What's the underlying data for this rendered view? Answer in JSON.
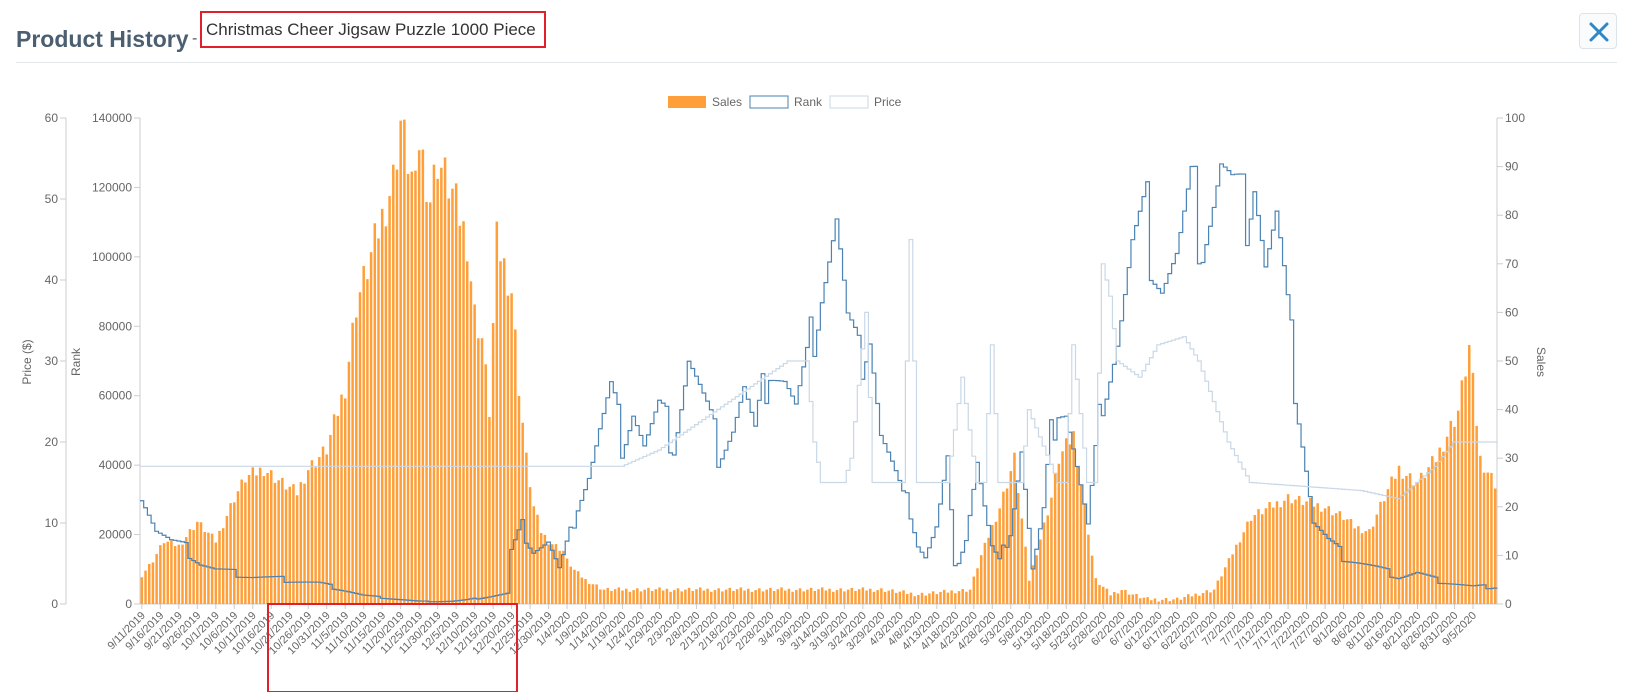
{
  "header": {
    "title": "Product History",
    "separator": "-",
    "product_name": "Christmas Cheer Jigsaw Puzzle 1000 Piece"
  },
  "icons": {
    "close": "close-icon"
  },
  "colors": {
    "sales": "#ff9f3a",
    "rank": "#4a83b4",
    "price": "#c9d8e6",
    "highlight": "#e0202b",
    "title": "#4b5f71"
  },
  "chart_data": {
    "type": "bar",
    "legend": {
      "position": "top-center",
      "entries": [
        "Sales",
        "Rank",
        "Price"
      ]
    },
    "axes": {
      "price": {
        "label": "Price ($)",
        "min": 0,
        "max": 60,
        "ticks": [
          "0",
          "10",
          "20",
          "30",
          "40",
          "50",
          "60"
        ]
      },
      "rank": {
        "label": "Rank",
        "min": 0,
        "max": 140000,
        "ticks": [
          "0",
          "20000",
          "40000",
          "60000",
          "80000",
          "100000",
          "120000",
          "140000"
        ]
      },
      "sales": {
        "label": "Sales",
        "min": 0,
        "max": 100,
        "ticks": [
          "0",
          "10",
          "20",
          "30",
          "40",
          "50",
          "60",
          "70",
          "80",
          "90",
          "100"
        ]
      }
    },
    "x_start": "9/11/2019",
    "x_days": 367,
    "x_tick_labels": [
      "9/11/2019",
      "9/16/2019",
      "9/21/2019",
      "9/26/2019",
      "10/1/2019",
      "10/6/2019",
      "10/11/2019",
      "10/16/2019",
      "10/21/2019",
      "10/26/2019",
      "10/31/2019",
      "11/5/2019",
      "11/10/2019",
      "11/15/2019",
      "11/20/2019",
      "11/25/2019",
      "11/30/2019",
      "12/5/2019",
      "12/10/2019",
      "12/15/2019",
      "12/20/2019",
      "12/25/2019",
      "12/30/2019",
      "1/4/2020",
      "1/9/2020",
      "1/14/2020",
      "1/19/2020",
      "1/24/2020",
      "1/29/2020",
      "2/3/2020",
      "2/8/2020",
      "2/13/2020",
      "2/18/2020",
      "2/23/2020",
      "2/28/2020",
      "3/4/2020",
      "3/9/2020",
      "3/14/2020",
      "3/19/2020",
      "3/24/2020",
      "3/29/2020",
      "4/3/2020",
      "4/8/2020",
      "4/13/2020",
      "4/18/2020",
      "4/23/2020",
      "4/28/2020",
      "5/3/2020",
      "5/8/2020",
      "5/13/2020",
      "5/18/2020",
      "5/23/2020",
      "5/28/2020",
      "6/2/2020",
      "6/7/2020",
      "6/12/2020",
      "6/17/2020",
      "6/22/2020",
      "6/27/2020",
      "7/2/2020",
      "7/7/2020",
      "7/12/2020",
      "7/17/2020",
      "7/22/2020",
      "7/27/2020",
      "8/1/2020",
      "8/6/2020",
      "8/11/2020",
      "8/16/2020",
      "8/21/2020",
      "8/26/2020",
      "8/31/2020",
      "9/5/2020"
    ],
    "sales_keyframes": {
      "day": [
        0,
        3,
        6,
        10,
        15,
        20,
        25,
        28,
        33,
        38,
        42,
        45,
        50,
        55,
        58,
        62,
        65,
        68,
        70,
        72,
        74,
        75,
        78,
        80,
        84,
        88,
        90,
        92,
        94,
        96,
        98,
        100,
        102,
        104,
        106,
        108,
        110,
        112,
        114,
        115,
        117,
        120,
        125,
        130,
        140,
        150,
        160,
        175,
        190,
        200,
        210,
        224,
        227,
        232,
        236,
        240,
        246,
        248,
        252,
        256,
        258,
        262,
        265,
        268,
        272,
        276,
        280,
        290,
        300,
        310,
        320,
        325,
        328,
        332,
        336,
        340,
        345,
        350,
        356,
        359,
        362,
        366
      ],
      "value": [
        6,
        9,
        13,
        12,
        17,
        13,
        22,
        26,
        28,
        25,
        23,
        28,
        32,
        45,
        62,
        72,
        80,
        88,
        100,
        92,
        85,
        96,
        84,
        92,
        85,
        75,
        60,
        55,
        40,
        75,
        70,
        65,
        45,
        30,
        20,
        15,
        13,
        12,
        11,
        9,
        7,
        5,
        3,
        3,
        3,
        3,
        3,
        3,
        3,
        3,
        2,
        3,
        10,
        20,
        30,
        5,
        22,
        30,
        35,
        15,
        5,
        2,
        3,
        2,
        1,
        1,
        1,
        3,
        18,
        22,
        20,
        18,
        16,
        15,
        22,
        28,
        25,
        30,
        40,
        53,
        30,
        25
      ]
    },
    "rank_keyframes": {
      "day": [
        0,
        4,
        8,
        12,
        16,
        20,
        30,
        40,
        48,
        55,
        60,
        64,
        68,
        75,
        80,
        84,
        88,
        92,
        96,
        99,
        100,
        103,
        106,
        110,
        113,
        116,
        118,
        121,
        124,
        127,
        130,
        133,
        136,
        140,
        144,
        148,
        152,
        156,
        160,
        163,
        166,
        170,
        174,
        177,
        180,
        184,
        188,
        191,
        194,
        197,
        200,
        203,
        206,
        208,
        210,
        212,
        215,
        218,
        220,
        223,
        226,
        228,
        230,
        232,
        235,
        238,
        241,
        244,
        246,
        248,
        250,
        253,
        256,
        260,
        264,
        268,
        272,
        276,
        280,
        284,
        287,
        290,
        292,
        295,
        298,
        301,
        304,
        307,
        310,
        313,
        317,
        321,
        325,
        330,
        335,
        340,
        345,
        350,
        355,
        360,
        366
      ],
      "rank": [
        34000,
        22000,
        18000,
        16000,
        12000,
        10000,
        8000,
        7000,
        6000,
        4000,
        2500,
        2000,
        1500,
        800,
        700,
        800,
        1200,
        1800,
        2500,
        3000,
        15000,
        22000,
        16000,
        18000,
        10000,
        20000,
        30000,
        38000,
        50000,
        60000,
        48000,
        58000,
        46000,
        55000,
        48000,
        72000,
        58000,
        45000,
        52000,
        62000,
        48000,
        72000,
        66000,
        56000,
        68000,
        95000,
        112000,
        80000,
        70000,
        82000,
        50000,
        40000,
        30000,
        28000,
        18000,
        14000,
        22000,
        40000,
        10000,
        20000,
        42000,
        28000,
        16000,
        12000,
        22000,
        46000,
        10000,
        26000,
        48000,
        60000,
        58000,
        40000,
        22000,
        62000,
        78000,
        102000,
        110000,
        96000,
        100000,
        116000,
        110000,
        120000,
        128000,
        118000,
        112000,
        130000,
        100000,
        110000,
        82000,
        58000,
        24000,
        18000,
        14000,
        12000,
        10000,
        8000,
        9000,
        7000,
        6000,
        5000,
        5000
      ]
    },
    "price_keyframes": {
      "day": [
        0,
        120,
        130,
        140,
        175,
        180,
        182,
        184,
        190,
        192,
        196,
        198,
        200,
        202,
        206,
        208,
        210,
        214,
        218,
        222,
        226,
        228,
        230,
        232,
        238,
        240,
        248,
        250,
        252,
        256,
        258,
        260,
        262,
        264,
        270,
        275,
        282,
        286,
        290,
        294,
        300,
        330,
        340,
        345,
        350,
        355,
        366
      ],
      "price": [
        17,
        17,
        17,
        19,
        30,
        30,
        20,
        15,
        15,
        18,
        36,
        15,
        15,
        15,
        15,
        45,
        15,
        15,
        15,
        28,
        15,
        15,
        32,
        15,
        15,
        24,
        15,
        15,
        32,
        15,
        15,
        42,
        38,
        30,
        28,
        32,
        33,
        30,
        25,
        20,
        15,
        14,
        13,
        15,
        17,
        20,
        20
      ]
    }
  }
}
